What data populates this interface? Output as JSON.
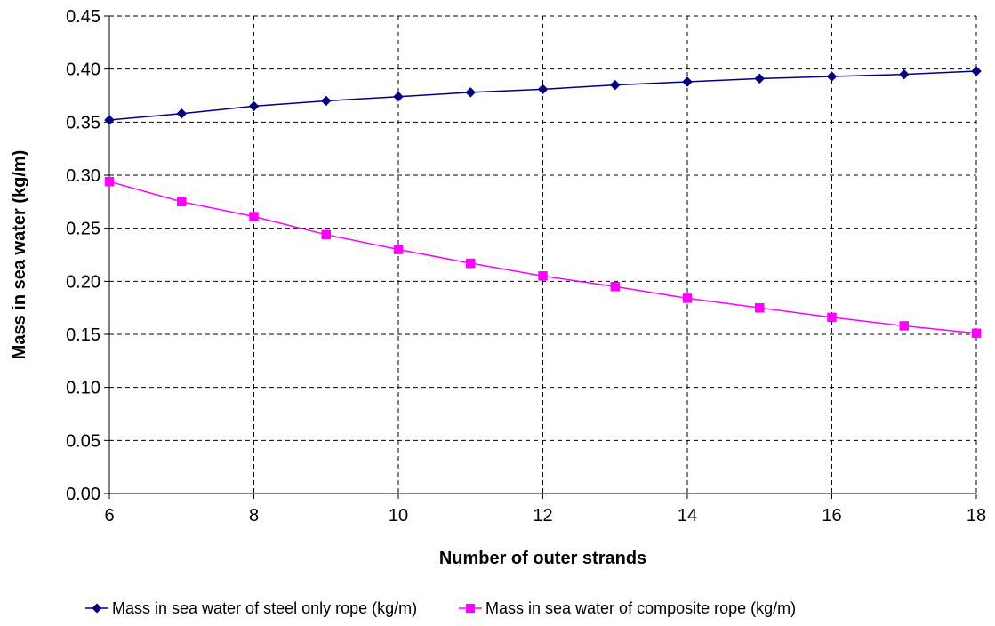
{
  "chart_data": {
    "type": "line",
    "title": "",
    "xlabel": "Number of outer strands",
    "ylabel": "Mass in sea water (kg/m)",
    "xlim": [
      6,
      18
    ],
    "ylim": [
      0.0,
      0.45
    ],
    "x_ticks": [
      "6",
      "8",
      "10",
      "12",
      "14",
      "16",
      "18"
    ],
    "y_ticks": [
      "0.00",
      "0.05",
      "0.10",
      "0.15",
      "0.20",
      "0.25",
      "0.30",
      "0.35",
      "0.40",
      "0.45"
    ],
    "grid": true,
    "legend_position": "bottom",
    "x": [
      6,
      7,
      8,
      9,
      10,
      11,
      12,
      13,
      14,
      15,
      16,
      17,
      18
    ],
    "series": [
      {
        "name": "Mass in sea water of steel only rope (kg/m)",
        "color": "#000080",
        "marker": "diamond",
        "values": [
          0.352,
          0.358,
          0.365,
          0.37,
          0.374,
          0.378,
          0.381,
          0.385,
          0.388,
          0.391,
          0.393,
          0.395,
          0.398
        ]
      },
      {
        "name": "Mass in sea water of composite rope (kg/m)",
        "color": "#FF00FF",
        "marker": "square",
        "values": [
          0.294,
          0.275,
          0.261,
          0.244,
          0.23,
          0.217,
          0.205,
          0.195,
          0.184,
          0.175,
          0.166,
          0.158,
          0.151
        ]
      }
    ]
  }
}
